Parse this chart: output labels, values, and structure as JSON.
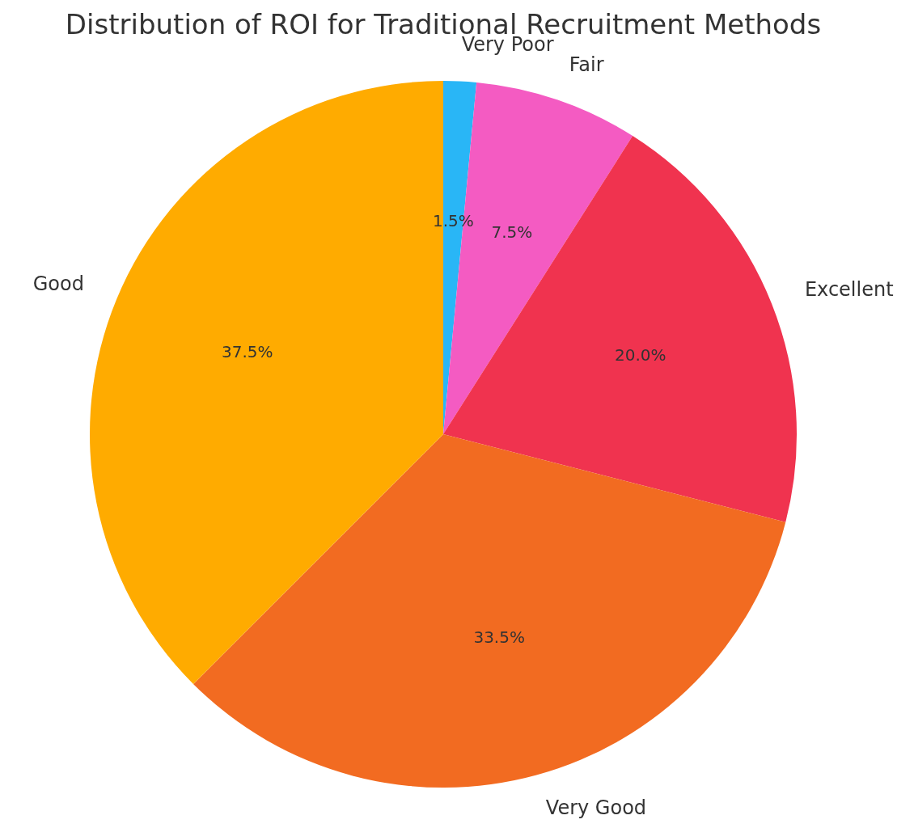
{
  "chart_data": {
    "type": "pie",
    "title": "Distribution of ROI for Traditional Recruitment Methods",
    "categories": [
      "Very Poor",
      "Fair",
      "Excellent",
      "Very Good",
      "Good"
    ],
    "values": [
      1.5,
      7.5,
      20.0,
      33.5,
      37.5
    ],
    "colors": [
      "#29b6f6",
      "#f45bc2",
      "#f0334f",
      "#f26b21",
      "#ffab00"
    ],
    "value_labels": [
      "1.5%",
      "7.5%",
      "20.0%",
      "33.5%",
      "37.5%"
    ],
    "legend": false
  }
}
